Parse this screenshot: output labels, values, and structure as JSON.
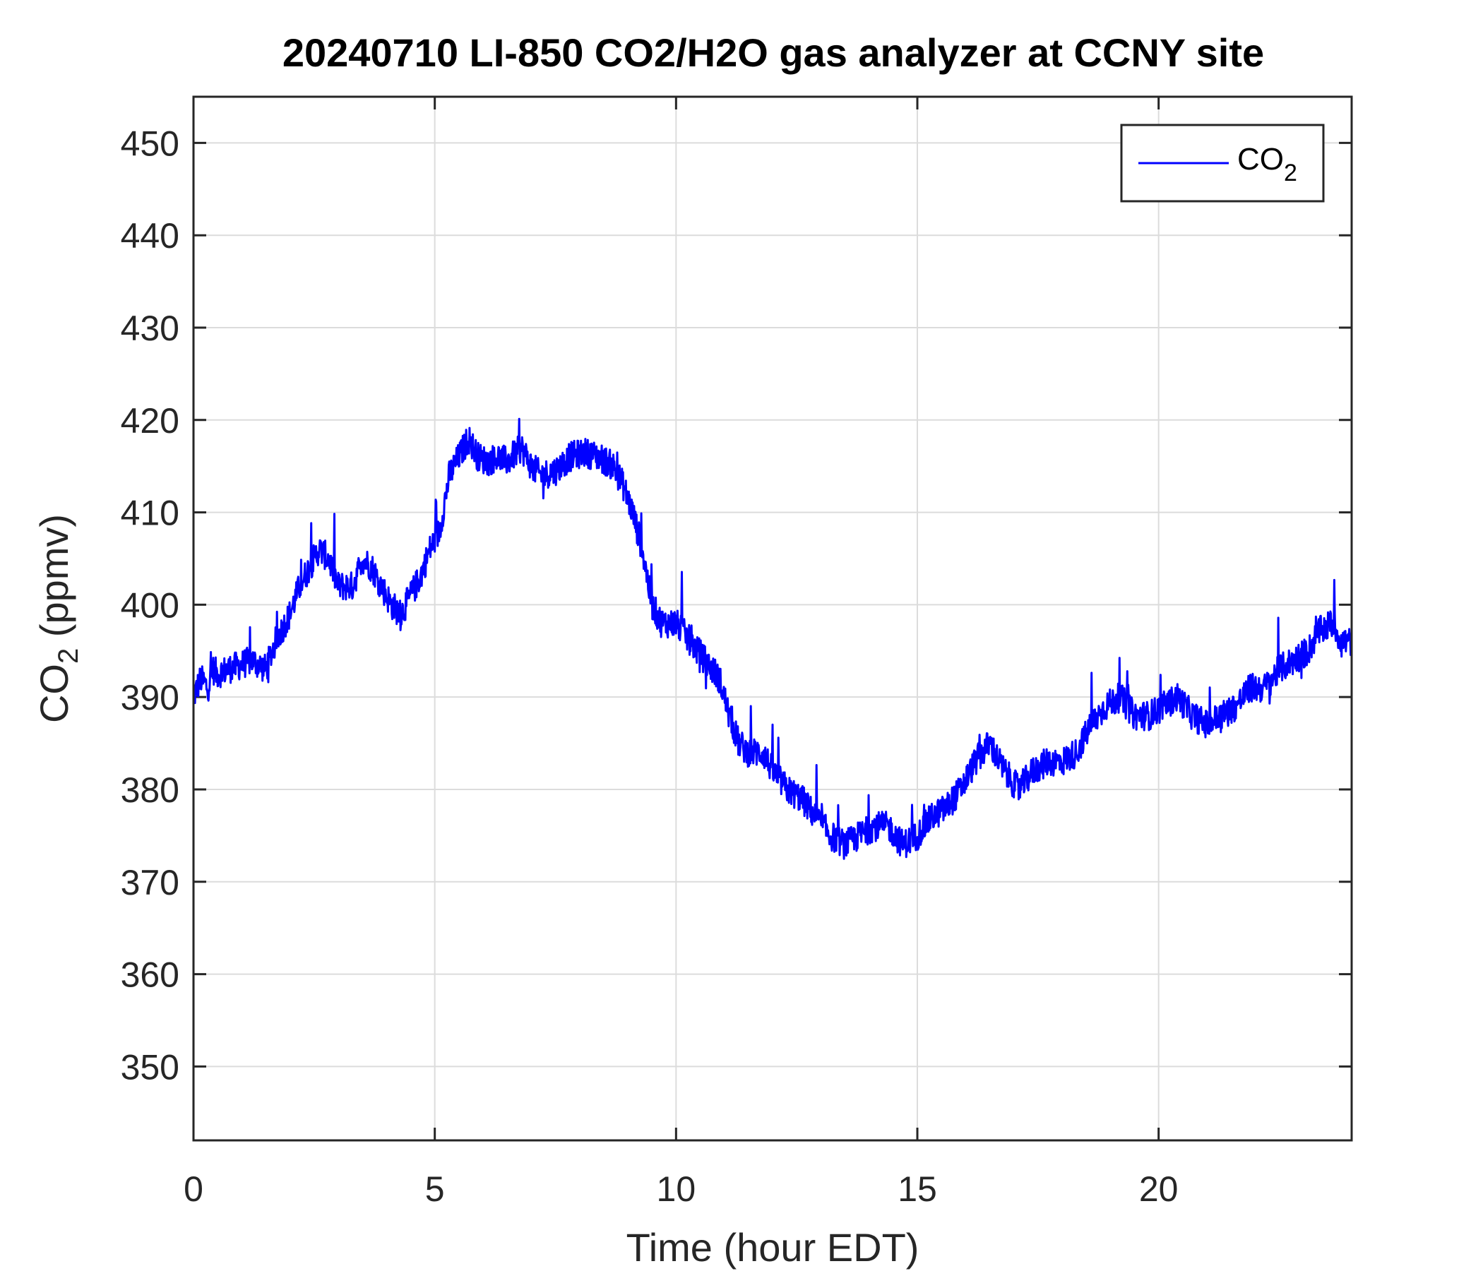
{
  "chart_data": {
    "type": "line",
    "title": "20240710 LI-850 CO2/H2O gas analyzer at CCNY site",
    "xlabel": "Time (hour EDT)",
    "ylabel": {
      "main": "CO",
      "sub": "2",
      "suffix": " (ppmv)"
    },
    "xlim": [
      0,
      24
    ],
    "ylim": [
      342,
      455
    ],
    "xticks": [
      0,
      5,
      10,
      15,
      20
    ],
    "yticks": [
      350,
      360,
      370,
      380,
      390,
      400,
      410,
      420,
      430,
      440,
      450
    ],
    "grid": true,
    "legend": {
      "placement": "top-right",
      "entries": [
        {
          "main": "CO",
          "sub": "2"
        }
      ]
    },
    "series": [
      {
        "name": "CO2",
        "color": "#0000ff",
        "noise": 1.6,
        "x": [
          0,
          0.15,
          0.3,
          0.4,
          0.5,
          0.7,
          1.0,
          1.2,
          1.5,
          1.7,
          2.0,
          2.2,
          2.4,
          2.6,
          2.8,
          3.0,
          3.3,
          3.5,
          3.7,
          3.9,
          4.1,
          4.3,
          4.5,
          4.7,
          4.9,
          5.1,
          5.3,
          5.5,
          5.7,
          5.9,
          6.1,
          6.3,
          6.5,
          6.8,
          7.0,
          7.2,
          7.5,
          7.8,
          8.1,
          8.4,
          8.7,
          8.9,
          9.1,
          9.3,
          9.5,
          9.7,
          10.0,
          10.3,
          10.6,
          10.9,
          11.1,
          11.3,
          11.5,
          11.8,
          12.0,
          12.3,
          12.6,
          12.9,
          13.2,
          13.5,
          13.8,
          14.1,
          14.4,
          14.7,
          15.0,
          15.3,
          15.6,
          15.9,
          16.2,
          16.5,
          16.8,
          17.1,
          17.4,
          17.7,
          18.0,
          18.3,
          18.6,
          18.9,
          19.2,
          19.5,
          19.8,
          20.1,
          20.4,
          20.7,
          21.0,
          21.3,
          21.6,
          21.9,
          22.2,
          22.5,
          22.8,
          23.1,
          23.3,
          23.6,
          23.8,
          24.0
        ],
        "values": [
          390,
          392,
          391,
          393,
          392.5,
          393,
          393.5,
          394,
          393,
          396,
          399,
          402,
          404,
          406,
          405,
          402,
          402,
          405,
          404,
          402,
          400,
          399,
          401,
          403,
          406,
          408,
          414,
          416,
          418,
          416,
          415.5,
          416,
          415.5,
          417,
          415,
          414,
          414.5,
          416,
          416.5,
          416,
          415,
          413,
          410,
          406,
          400,
          398,
          398,
          396,
          394,
          392,
          388,
          385,
          384,
          384,
          382,
          380,
          379,
          377,
          375,
          374,
          375,
          376,
          376,
          374,
          375,
          377,
          378,
          380,
          383,
          385,
          382,
          380,
          382,
          383,
          383,
          384,
          387,
          389,
          390,
          388,
          388,
          389,
          390,
          388,
          387,
          388,
          389,
          391,
          391,
          393,
          394,
          395,
          397,
          398,
          396,
          396
        ]
      }
    ]
  }
}
